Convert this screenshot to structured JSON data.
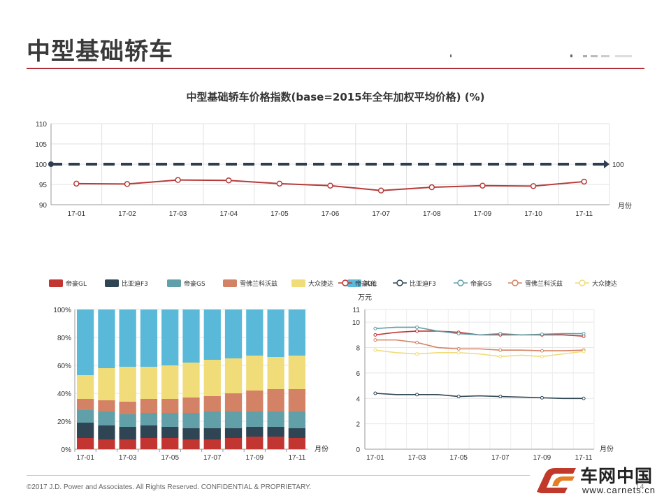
{
  "page": {
    "title": "中型基础轿车",
    "footer": "©2017 J.D. Power and Associates. All Rights Reserved. CONFIDENTIAL & PROPRIETARY.",
    "page_number": "14",
    "logo_text": "车网中国",
    "logo_url": "www.carnets.cn",
    "accent_color": "#b0303a"
  },
  "chart_data": [
    {
      "type": "line",
      "title": "中型基础轿车价格指数(base=2015年全年加权平均价格) (%)",
      "xlabel": "月份",
      "categories": [
        "17-01",
        "17-02",
        "17-03",
        "17-04",
        "17-05",
        "17-06",
        "17-07",
        "17-08",
        "17-09",
        "17-10",
        "17-11"
      ],
      "ylim": [
        90,
        110
      ],
      "yticks": [
        90,
        95,
        100,
        105,
        110
      ],
      "series": [
        {
          "name": "",
          "color": "#b73a3a",
          "values": [
            95.2,
            95.1,
            96.1,
            96.0,
            95.2,
            94.7,
            93.5,
            94.3,
            94.7,
            94.6,
            95.7
          ]
        }
      ],
      "reference_line": {
        "value": 100,
        "label": "100",
        "color": "#2c3e50",
        "style": "dashed"
      },
      "grid": true
    },
    {
      "type": "bar",
      "stacked": true,
      "xlabel": "月份",
      "categories": [
        "17-01",
        "17-02",
        "17-03",
        "17-04",
        "17-05",
        "17-06",
        "17-07",
        "17-08",
        "17-09",
        "17-10",
        "17-11"
      ],
      "tick_labels": [
        "17-01",
        "17-03",
        "17-05",
        "17-07",
        "17-09",
        "17-11"
      ],
      "ylim": [
        0,
        100
      ],
      "yticks": [
        "0%",
        "20%",
        "40%",
        "60%",
        "80%",
        "100%"
      ],
      "legend_position": "top",
      "series": [
        {
          "name": "帝豪GL",
          "color": "#c23531",
          "values": [
            8,
            7,
            7,
            8,
            8,
            7,
            7,
            8,
            9,
            9,
            8
          ]
        },
        {
          "name": "比亚迪F3",
          "color": "#2f4554",
          "values": [
            11,
            10,
            9,
            9,
            8,
            8,
            8,
            7,
            7,
            7,
            7
          ]
        },
        {
          "name": "帝豪GS",
          "color": "#61a0a8",
          "values": [
            9,
            10,
            9,
            9,
            10,
            11,
            12,
            12,
            11,
            11,
            12
          ]
        },
        {
          "name": "雪佛兰科沃兹",
          "color": "#d48265",
          "values": [
            8,
            8,
            9,
            10,
            10,
            11,
            11,
            13,
            15,
            16,
            16
          ]
        },
        {
          "name": "大众捷达",
          "color": "#f0dc78",
          "values": [
            17,
            23,
            25,
            23,
            24,
            25,
            26,
            25,
            25,
            23,
            24
          ]
        },
        {
          "name": "其他",
          "color": "#5ab9d9",
          "values": [
            47,
            42,
            41,
            41,
            40,
            38,
            36,
            35,
            33,
            34,
            33
          ]
        }
      ]
    },
    {
      "type": "line",
      "xlabel": "月份",
      "ylabel": "万元",
      "categories": [
        "17-01",
        "17-02",
        "17-03",
        "17-04",
        "17-05",
        "17-06",
        "17-07",
        "17-08",
        "17-09",
        "17-10",
        "17-11"
      ],
      "tick_labels": [
        "17-01",
        "17-03",
        "17-05",
        "17-07",
        "17-09",
        "17-11"
      ],
      "ylim": [
        0,
        11
      ],
      "yticks": [
        0,
        2,
        4,
        6,
        8,
        10,
        11
      ],
      "legend_position": "top",
      "series": [
        {
          "name": "帝豪GL",
          "color": "#c23531",
          "values": [
            9.0,
            9.2,
            9.3,
            9.3,
            9.2,
            9.0,
            9.0,
            9.0,
            9.0,
            9.0,
            8.9
          ]
        },
        {
          "name": "比亚迪F3",
          "color": "#2f4554",
          "values": [
            4.4,
            4.3,
            4.3,
            4.3,
            4.15,
            4.2,
            4.15,
            4.1,
            4.05,
            4.0,
            4.0
          ]
        },
        {
          "name": "帝豪GS",
          "color": "#61a0a8",
          "values": [
            9.5,
            9.6,
            9.6,
            9.3,
            9.1,
            9.0,
            9.1,
            9.0,
            9.05,
            9.1,
            9.1
          ]
        },
        {
          "name": "雪佛兰科沃兹",
          "color": "#d48265",
          "values": [
            8.6,
            8.6,
            8.4,
            8.0,
            7.9,
            7.9,
            7.8,
            7.8,
            7.75,
            7.75,
            7.8
          ]
        },
        {
          "name": "大众捷达",
          "color": "#f0dc78",
          "values": [
            7.8,
            7.6,
            7.5,
            7.6,
            7.6,
            7.5,
            7.3,
            7.4,
            7.3,
            7.5,
            7.7
          ]
        }
      ],
      "grid": true
    }
  ]
}
